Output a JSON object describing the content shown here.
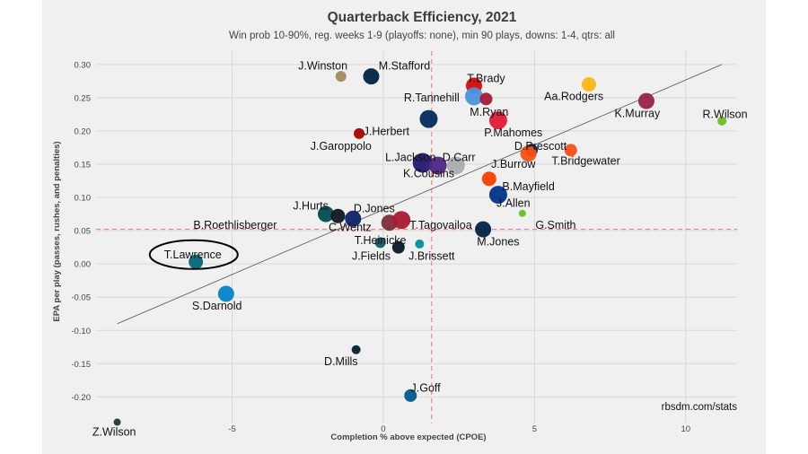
{
  "chart_data": {
    "type": "scatter",
    "title": "Quarterback Efficiency, 2021",
    "subtitle": "Win prob 10-90%, reg. weeks 1-9 (playoffs: none), min 90 plays, downs: 1-4, qtrs: all",
    "xlabel": "Completion % above expected (CPOE)",
    "ylabel": "EPA per play (passes, rushes, and penalties)",
    "source": "rbsdm.com/stats",
    "xlim": [
      -9.5,
      11.7
    ],
    "ylim": [
      -0.24,
      0.32
    ],
    "xticks": [
      -5,
      0,
      5,
      10
    ],
    "yticks": [
      -0.2,
      -0.15,
      -0.1,
      -0.05,
      0.0,
      0.05,
      0.1,
      0.15,
      0.2,
      0.25,
      0.3
    ],
    "ytick_labels": [
      "-0.20",
      "-0.15",
      "-0.10",
      "-0.05",
      "0.00",
      "0.05",
      "0.10",
      "0.15",
      "0.20",
      "0.25",
      "0.30"
    ],
    "xtick_labels": [
      "-5",
      "0",
      "5",
      "10"
    ],
    "ref_lines": {
      "mean_x": 1.6,
      "mean_y": 0.052
    },
    "trend_line": {
      "x": [
        -8.8,
        11.2
      ],
      "y": [
        -0.09,
        0.3
      ]
    },
    "highlight": "T.Lawrence",
    "points": [
      {
        "name": "J.Winston",
        "x": -1.4,
        "y": 0.282,
        "size": 6,
        "color": "#A08A58",
        "lx": -2,
        "ly": 0.298
      },
      {
        "name": "M.Stafford",
        "x": -0.4,
        "y": 0.282,
        "size": 9,
        "color": "#002244",
        "lx": 0.7,
        "ly": 0.298
      },
      {
        "name": "T.Brady",
        "x": 3.0,
        "y": 0.268,
        "size": 9,
        "color": "#D50A0A",
        "lx": 3.4,
        "ly": 0.279
      },
      {
        "name": "R.Tannehill",
        "x": 3.0,
        "y": 0.252,
        "size": 10,
        "color": "#4B92DB",
        "lx": 1.6,
        "ly": 0.25
      },
      {
        "name": "Aa.Rodgers",
        "x": 6.8,
        "y": 0.27,
        "size": 8,
        "color": "#FFB612",
        "lx": 6.3,
        "ly": 0.252
      },
      {
        "name": "K.Murray",
        "x": 8.7,
        "y": 0.245,
        "size": 9,
        "color": "#97233F",
        "lx": 8.4,
        "ly": 0.226
      },
      {
        "name": "R.Wilson",
        "x": 11.2,
        "y": 0.215,
        "size": 5,
        "color": "#69BE28",
        "lx": 11.3,
        "ly": 0.225
      },
      {
        "name": "M.Ryan",
        "x": 3.4,
        "y": 0.248,
        "size": 7,
        "color": "#A71930",
        "lx": 3.5,
        "ly": 0.228
      },
      {
        "name": "P.Mahomes",
        "x": 3.8,
        "y": 0.216,
        "size": 10,
        "color": "#E31837",
        "lx": 4.3,
        "ly": 0.197
      },
      {
        "name": "J.Herbert",
        "x": 1.5,
        "y": 0.218,
        "size": 10,
        "color": "#002A5E",
        "lx": 0.1,
        "ly": 0.199
      },
      {
        "name": "J.Garoppolo",
        "x": -0.8,
        "y": 0.196,
        "size": 6,
        "color": "#AA0000",
        "lx": -1.4,
        "ly": 0.177
      },
      {
        "name": "D.Prescott",
        "x": 4.9,
        "y": 0.171,
        "size": 7,
        "color": "#002244",
        "lx": 5.2,
        "ly": 0.177
      },
      {
        "name": "T.Bridgewater",
        "x": 6.2,
        "y": 0.171,
        "size": 7,
        "color": "#FB4F14",
        "lx": 6.7,
        "ly": 0.155
      },
      {
        "name": "L.Jackson",
        "x": 1.3,
        "y": 0.152,
        "size": 11,
        "color": "#241773",
        "lx": 0.9,
        "ly": 0.16
      },
      {
        "name": "D.Carr",
        "x": 2.4,
        "y": 0.148,
        "size": 10,
        "color": "#A5ACAF",
        "lx": 2.5,
        "ly": 0.16
      },
      {
        "name": "K.Cousins",
        "x": 1.8,
        "y": 0.148,
        "size": 10,
        "color": "#4F2683",
        "lx": 1.5,
        "ly": 0.136
      },
      {
        "name": "J.Burrow",
        "x": 4.8,
        "y": 0.166,
        "size": 9,
        "color": "#FB4F14",
        "lx": 4.3,
        "ly": 0.15
      },
      {
        "name": "B.Mayfield",
        "x": 3.5,
        "y": 0.128,
        "size": 8,
        "color": "#FF3C00",
        "lx": 4.8,
        "ly": 0.116
      },
      {
        "name": "J.Allen",
        "x": 3.8,
        "y": 0.104,
        "size": 10,
        "color": "#00338D",
        "lx": 4.3,
        "ly": 0.091
      },
      {
        "name": "G.Smith",
        "x": 4.6,
        "y": 0.076,
        "size": 4,
        "color": "#69BE28",
        "lx": 5.7,
        "ly": 0.058
      },
      {
        "name": "M.Jones",
        "x": 3.3,
        "y": 0.052,
        "size": 9,
        "color": "#002244",
        "lx": 3.8,
        "ly": 0.033
      },
      {
        "name": "J.Hurts",
        "x": -1.9,
        "y": 0.075,
        "size": 9,
        "color": "#004C54",
        "lx": -2.4,
        "ly": 0.087
      },
      {
        "name": "D.Jones",
        "x": -1.0,
        "y": 0.068,
        "size": 9,
        "color": "#0B2265",
        "lx": -0.3,
        "ly": 0.083
      },
      {
        "name": "B.Roethlisberger",
        "x": -1.5,
        "y": 0.072,
        "size": 8,
        "color": "#101820",
        "lx": -4.9,
        "ly": 0.058
      },
      {
        "name": "C.Wentz",
        "x": 0.2,
        "y": 0.062,
        "size": 9,
        "color": "#7A2C3A",
        "lx": -1.1,
        "ly": 0.055
      },
      {
        "name": "T.Tagovailoa",
        "x": 0.6,
        "y": 0.066,
        "size": 10,
        "color": "#A71930",
        "lx": 1.9,
        "ly": 0.058
      },
      {
        "name": "T.Heinicke",
        "x": -0.1,
        "y": 0.032,
        "size": 6,
        "color": "#0A5C63",
        "lx": -0.1,
        "ly": 0.035
      },
      {
        "name": "J.Fields",
        "x": 0.5,
        "y": 0.025,
        "size": 7,
        "color": "#0B162A",
        "lx": -0.4,
        "ly": 0.012
      },
      {
        "name": "J.Brissett",
        "x": 1.2,
        "y": 0.03,
        "size": 5,
        "color": "#008E97",
        "lx": 1.6,
        "ly": 0.012
      },
      {
        "name": "T.Lawrence",
        "x": -6.2,
        "y": 0.003,
        "size": 8,
        "color": "#006778",
        "lx": -6.3,
        "ly": 0.014
      },
      {
        "name": "S.Darnold",
        "x": -5.2,
        "y": -0.045,
        "size": 9,
        "color": "#0085CA",
        "lx": -5.5,
        "ly": -0.063
      },
      {
        "name": "D.Mills",
        "x": -0.9,
        "y": -0.129,
        "size": 5,
        "color": "#03202F",
        "lx": -1.4,
        "ly": -0.147
      },
      {
        "name": "J.Goff",
        "x": 0.9,
        "y": -0.198,
        "size": 7,
        "color": "#005A8B",
        "lx": 1.4,
        "ly": -0.187
      },
      {
        "name": "Z.Wilson",
        "x": -8.8,
        "y": -0.238,
        "size": 4,
        "color": "#203731",
        "lx": -8.9,
        "ly": -0.253
      }
    ]
  }
}
